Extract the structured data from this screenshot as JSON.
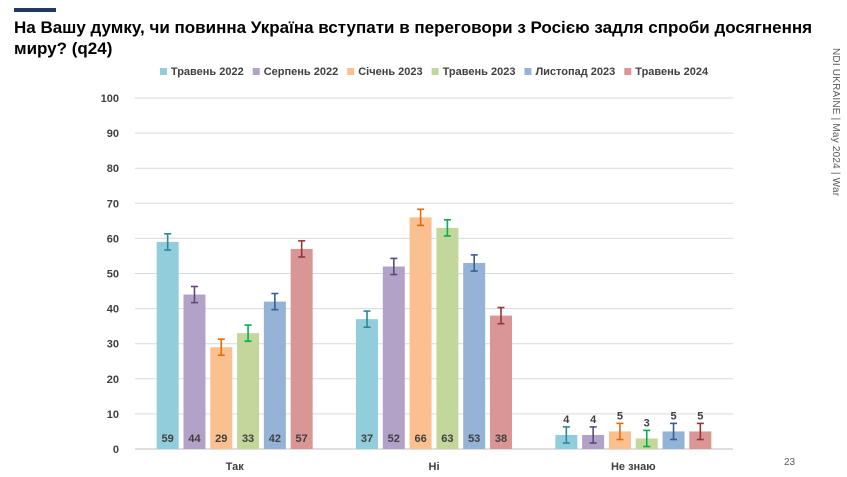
{
  "slide": {
    "title": "На Вашу думку, чи повинна Україна вступати в переговори з Росією задля спроби досягнення миру? (q24)",
    "side_note": "NDI UKRAINE | May 2024 | War",
    "page_number": "23"
  },
  "chart_data": {
    "type": "bar",
    "title": "На Вашу думку, чи повинна Україна вступати в переговори з Росією задля спроби досягнення миру? (q24)",
    "xlabel": "",
    "ylabel": "",
    "ylim": [
      0,
      100
    ],
    "yticks": [
      0,
      10,
      20,
      30,
      40,
      50,
      60,
      70,
      80,
      90,
      100
    ],
    "grid": true,
    "legend_position": "top",
    "categories": [
      "Так",
      "Ні",
      "Не знаю"
    ],
    "series": [
      {
        "name": "Травень 2022",
        "color": "#92cddc",
        "error_color": "#31849b",
        "values": [
          59,
          37,
          4
        ]
      },
      {
        "name": "Серпень 2022",
        "color": "#b3a2c7",
        "error_color": "#5f497a",
        "values": [
          44,
          52,
          4
        ]
      },
      {
        "name": "Січень 2023",
        "color": "#fac090",
        "error_color": "#e36c09",
        "values": [
          29,
          66,
          5
        ]
      },
      {
        "name": "Травень 2023",
        "color": "#c3d69b",
        "error_color": "#00b050",
        "values": [
          33,
          63,
          3
        ]
      },
      {
        "name": "Листопад 2023",
        "color": "#95b3d7",
        "error_color": "#366092",
        "values": [
          42,
          53,
          5
        ]
      },
      {
        "name": "Травень 2024",
        "color": "#d99694",
        "error_color": "#953735",
        "values": [
          57,
          38,
          5
        ]
      }
    ],
    "error_margin": 2.3
  }
}
